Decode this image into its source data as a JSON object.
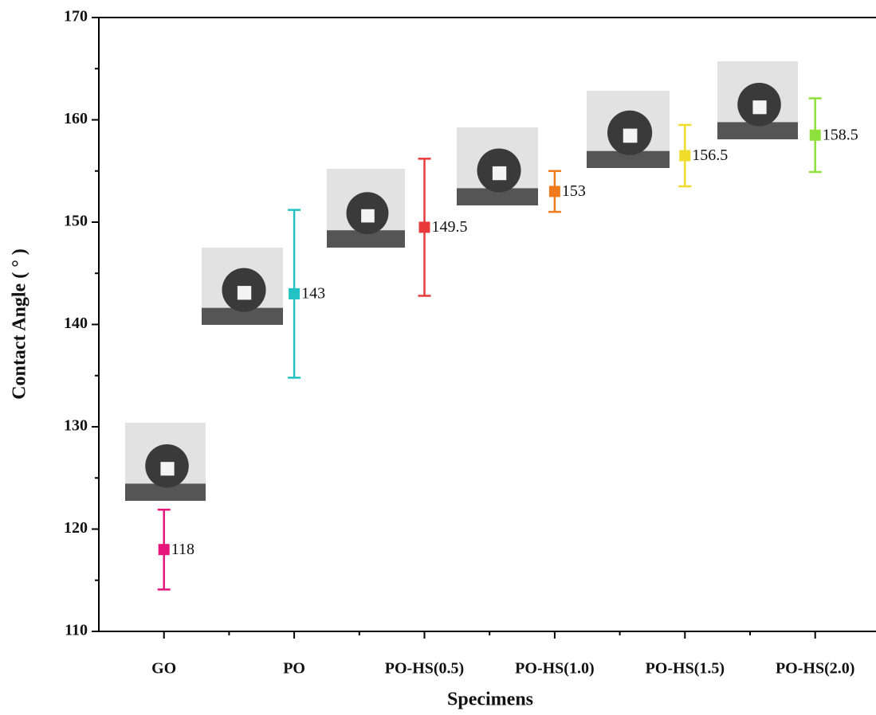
{
  "chart_data": {
    "type": "errorbar",
    "xlabel": "Specimens",
    "ylabel": "Contact Angle ( ° )",
    "categories": [
      "GO",
      "PO",
      "PO-HS(0.5)",
      "PO-HS(1.0)",
      "PO-HS(1.5)",
      "PO-HS(2.0)"
    ],
    "values": [
      118,
      143,
      149.5,
      153,
      156.5,
      158.5
    ],
    "errors": [
      3.9,
      8.2,
      6.7,
      2,
      3,
      3.6
    ],
    "colors": [
      "#e6157a",
      "#22c1c3",
      "#e83a3a",
      "#ef7b1c",
      "#f0dc2a",
      "#8ee03a"
    ],
    "ylim": [
      110,
      170
    ],
    "yticks": [
      110,
      120,
      130,
      140,
      150,
      160,
      170
    ]
  }
}
